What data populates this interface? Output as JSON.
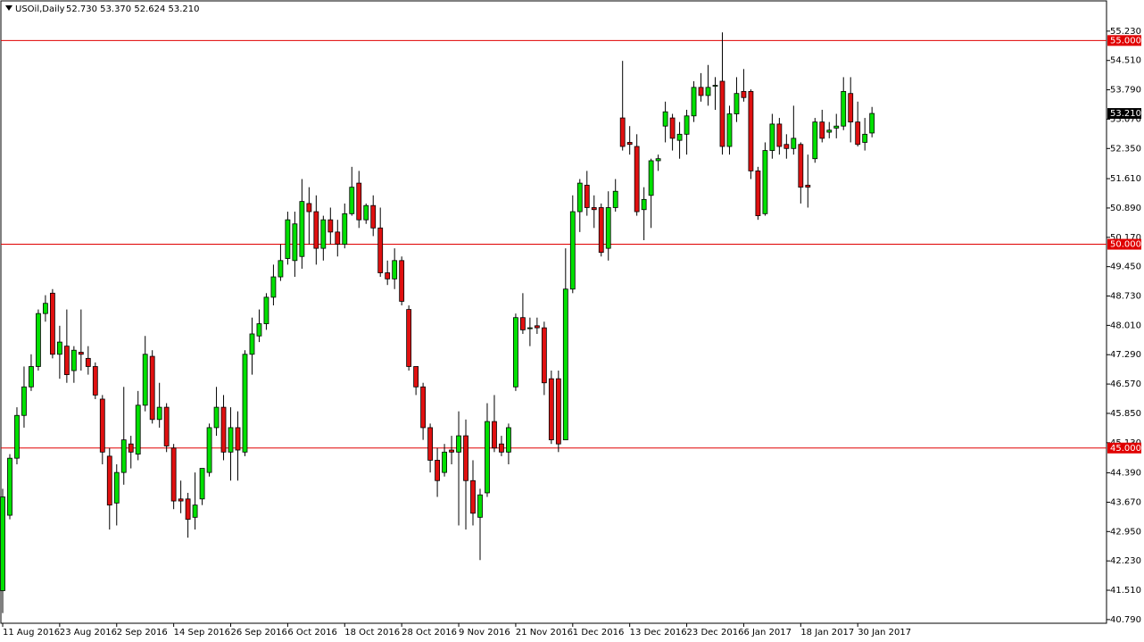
{
  "chart_data": {
    "type": "candlestick",
    "title": "USOil,Daily",
    "quote": "52.730 53.370 52.624 53.210",
    "categories": [
      "11 Aug 2016",
      null,
      null,
      null,
      null,
      null,
      null,
      null,
      "23 Aug 2016",
      null,
      null,
      null,
      null,
      null,
      null,
      null,
      "2 Sep 2016",
      null,
      null,
      null,
      null,
      null,
      null,
      null,
      "14 Sep 2016",
      null,
      null,
      null,
      null,
      null,
      null,
      null,
      "26 Sep 2016",
      null,
      null,
      null,
      null,
      null,
      null,
      null,
      "6 Oct 2016",
      null,
      null,
      null,
      null,
      null,
      null,
      null,
      "18 Oct 2016",
      null,
      null,
      null,
      null,
      null,
      null,
      null,
      "28 Oct 2016",
      null,
      null,
      null,
      null,
      null,
      null,
      null,
      "9 Nov 2016",
      null,
      null,
      null,
      null,
      null,
      null,
      null,
      "21 Nov 2016",
      null,
      null,
      null,
      null,
      null,
      null,
      null,
      "1 Dec 2016",
      null,
      null,
      null,
      null,
      null,
      null,
      null,
      "13 Dec 2016",
      null,
      null,
      null,
      null,
      null,
      null,
      null,
      "23 Dec 2016",
      null,
      null,
      null,
      null,
      null,
      null,
      null,
      "6 Jan 2017",
      null,
      null,
      null,
      null,
      null,
      null,
      null,
      "18 Jan 2017",
      null,
      null,
      null,
      null,
      null,
      null,
      null,
      "30 Jan 2017",
      null,
      null
    ],
    "open": [
      41.5,
      43.35,
      44.75,
      45.8,
      46.5,
      47.0,
      48.3,
      48.8,
      47.3,
      47.5,
      46.9,
      47.35,
      47.2,
      47.0,
      46.2,
      44.8,
      43.65,
      44.4,
      45.1,
      44.85,
      46.05,
      47.25,
      45.7,
      46.0,
      45.0,
      43.75,
      43.75,
      43.3,
      43.75,
      44.4,
      45.5,
      46.0,
      44.9,
      45.5,
      44.9,
      47.3,
      47.75,
      48.05,
      48.7,
      49.2,
      49.65,
      49.6,
      49.7,
      51.0,
      50.8,
      49.9,
      50.6,
      50.3,
      50.0,
      50.75,
      51.5,
      50.6,
      50.95,
      50.4,
      49.3,
      49.15,
      49.6,
      48.4,
      47.0,
      46.5,
      45.5,
      44.7,
      44.4,
      44.95,
      44.9,
      45.3,
      44.2,
      43.3,
      43.9,
      45.65,
      45.1,
      44.9,
      46.5,
      48.2,
      47.95,
      48.0,
      47.95,
      46.7,
      46.7,
      45.2,
      48.9,
      50.8,
      51.45,
      50.9,
      50.9,
      49.9,
      50.9,
      53.1,
      52.5,
      52.4,
      50.85,
      51.2,
      52.05,
      52.9,
      53.1,
      52.55,
      52.7,
      53.15,
      53.85,
      53.65,
      53.9,
      54.0,
      52.4,
      53.2,
      53.75,
      53.75,
      51.8,
      50.75,
      52.3,
      52.95,
      52.45,
      52.35,
      52.45,
      51.45,
      52.1,
      53.0,
      52.75,
      52.85,
      52.9,
      53.7,
      53.0,
      52.5,
      52.73
    ],
    "high": [
      44.0,
      44.85,
      46.0,
      47.0,
      47.3,
      48.4,
      48.75,
      48.9,
      48.0,
      48.4,
      47.5,
      48.4,
      47.5,
      47.1,
      46.3,
      45.0,
      44.6,
      46.5,
      45.3,
      46.4,
      47.75,
      47.4,
      46.6,
      46.1,
      45.1,
      44.2,
      43.9,
      44.4,
      44.5,
      45.6,
      46.5,
      46.3,
      46.0,
      45.9,
      47.4,
      48.2,
      48.4,
      48.8,
      49.5,
      50.0,
      50.8,
      50.8,
      51.6,
      51.4,
      51.2,
      50.7,
      50.9,
      50.6,
      51.0,
      51.9,
      51.8,
      51.0,
      51.2,
      50.9,
      49.6,
      49.9,
      49.7,
      48.5,
      47.0,
      46.6,
      45.6,
      45.0,
      45.1,
      45.3,
      45.9,
      45.7,
      44.7,
      44.0,
      46.1,
      46.3,
      45.3,
      45.6,
      48.3,
      48.8,
      48.2,
      48.2,
      48.1,
      46.9,
      46.9,
      49.9,
      51.2,
      51.6,
      51.8,
      51.2,
      51.0,
      51.3,
      51.6,
      54.5,
      52.9,
      52.7,
      51.4,
      52.1,
      52.2,
      53.5,
      53.2,
      53.0,
      53.3,
      54.0,
      54.2,
      54.4,
      54.1,
      55.2,
      53.4,
      54.1,
      54.3,
      53.8,
      51.9,
      52.5,
      53.2,
      53.1,
      52.7,
      53.4,
      52.5,
      52.2,
      53.1,
      53.3,
      53.0,
      53.2,
      54.1,
      54.1,
      53.5,
      53.1,
      53.37
    ],
    "low": [
      40.95,
      43.25,
      44.6,
      45.5,
      46.4,
      46.9,
      48.1,
      47.2,
      46.7,
      46.6,
      46.6,
      46.9,
      46.8,
      46.2,
      44.6,
      43.0,
      43.1,
      44.1,
      44.5,
      44.7,
      45.9,
      45.6,
      45.5,
      44.9,
      43.5,
      43.4,
      42.8,
      43.0,
      43.6,
      44.3,
      45.3,
      44.7,
      44.2,
      44.2,
      44.8,
      46.8,
      47.6,
      47.9,
      48.5,
      49.1,
      49.5,
      49.2,
      49.4,
      50.0,
      49.5,
      49.6,
      50.0,
      49.7,
      49.9,
      50.7,
      50.4,
      50.5,
      50.2,
      49.2,
      49.0,
      48.9,
      48.5,
      46.9,
      46.3,
      45.2,
      44.4,
      43.8,
      44.3,
      44.6,
      43.1,
      43.0,
      43.1,
      42.25,
      43.8,
      44.9,
      44.8,
      44.6,
      46.4,
      47.8,
      47.5,
      47.8,
      46.3,
      45.1,
      44.9,
      45.2,
      48.8,
      50.3,
      50.7,
      50.4,
      49.7,
      49.6,
      50.8,
      52.3,
      52.2,
      50.7,
      50.1,
      50.4,
      51.8,
      52.5,
      52.3,
      52.1,
      52.2,
      53.0,
      53.5,
      53.4,
      53.3,
      52.2,
      52.2,
      53.0,
      53.5,
      51.6,
      50.6,
      50.7,
      52.1,
      52.2,
      52.1,
      52.2,
      51.0,
      50.9,
      52.0,
      52.5,
      52.6,
      52.6,
      52.8,
      52.5,
      52.4,
      52.3,
      52.624
    ],
    "close": [
      43.8,
      44.75,
      45.8,
      46.5,
      47.0,
      48.3,
      48.55,
      47.3,
      47.6,
      46.8,
      47.4,
      47.3,
      47.0,
      46.3,
      44.9,
      43.6,
      44.4,
      45.2,
      44.9,
      46.05,
      47.3,
      45.7,
      46.0,
      45.05,
      43.7,
      43.7,
      43.25,
      43.6,
      44.5,
      45.5,
      46.0,
      44.9,
      45.5,
      44.95,
      47.3,
      47.8,
      48.05,
      48.7,
      49.2,
      49.6,
      50.6,
      50.5,
      51.05,
      50.8,
      49.9,
      50.6,
      50.3,
      50.0,
      50.75,
      51.4,
      50.6,
      50.95,
      50.4,
      49.3,
      49.15,
      49.6,
      48.6,
      47.0,
      46.5,
      45.5,
      44.7,
      44.2,
      44.9,
      44.9,
      45.3,
      44.2,
      43.4,
      43.85,
      45.65,
      45.0,
      44.9,
      45.5,
      48.2,
      47.9,
      47.95,
      47.95,
      46.6,
      45.2,
      45.1,
      48.9,
      50.8,
      51.5,
      50.9,
      50.85,
      49.8,
      50.9,
      51.3,
      52.4,
      52.45,
      50.8,
      51.1,
      52.05,
      52.1,
      53.25,
      52.6,
      52.7,
      53.15,
      53.85,
      53.65,
      53.85,
      53.9,
      52.4,
      53.2,
      53.7,
      53.6,
      51.8,
      50.7,
      52.3,
      52.95,
      52.4,
      52.35,
      52.6,
      51.4,
      51.4,
      53.0,
      52.6,
      52.8,
      52.9,
      53.75,
      53.0,
      52.45,
      52.7,
      53.21
    ],
    "up_color": "#00e000",
    "down_color": "#e01010",
    "ylim": [
      40.7,
      55.95
    ],
    "yticks": [
      {
        "value": 55.23,
        "label": "55.230"
      },
      {
        "value": 54.51,
        "label": "54.510"
      },
      {
        "value": 53.79,
        "label": "53.790"
      },
      {
        "value": 53.07,
        "label": "53.070"
      },
      {
        "value": 52.35,
        "label": "52.350"
      },
      {
        "value": 51.61,
        "label": "51.610"
      },
      {
        "value": 50.89,
        "label": "50.890"
      },
      {
        "value": 50.17,
        "label": "50.170"
      },
      {
        "value": 49.45,
        "label": "49.450"
      },
      {
        "value": 48.73,
        "label": "48.730"
      },
      {
        "value": 48.01,
        "label": "48.010"
      },
      {
        "value": 47.29,
        "label": "47.290"
      },
      {
        "value": 46.57,
        "label": "46.570"
      },
      {
        "value": 45.85,
        "label": "45.850"
      },
      {
        "value": 45.13,
        "label": "45.130"
      },
      {
        "value": 44.39,
        "label": "44.390"
      },
      {
        "value": 43.67,
        "label": "43.670"
      },
      {
        "value": 42.95,
        "label": "42.950"
      },
      {
        "value": 42.23,
        "label": "42.230"
      },
      {
        "value": 41.51,
        "label": "41.510"
      },
      {
        "value": 40.79,
        "label": "40.790"
      }
    ],
    "levels": [
      {
        "value": 55,
        "label": "55.000"
      },
      {
        "value": 50,
        "label": "50.000"
      },
      {
        "value": 45,
        "label": "45.000"
      }
    ],
    "level_color": "#e00000",
    "current_price": {
      "value": 53.21,
      "label": "53.210"
    },
    "current_color": "#000000"
  }
}
